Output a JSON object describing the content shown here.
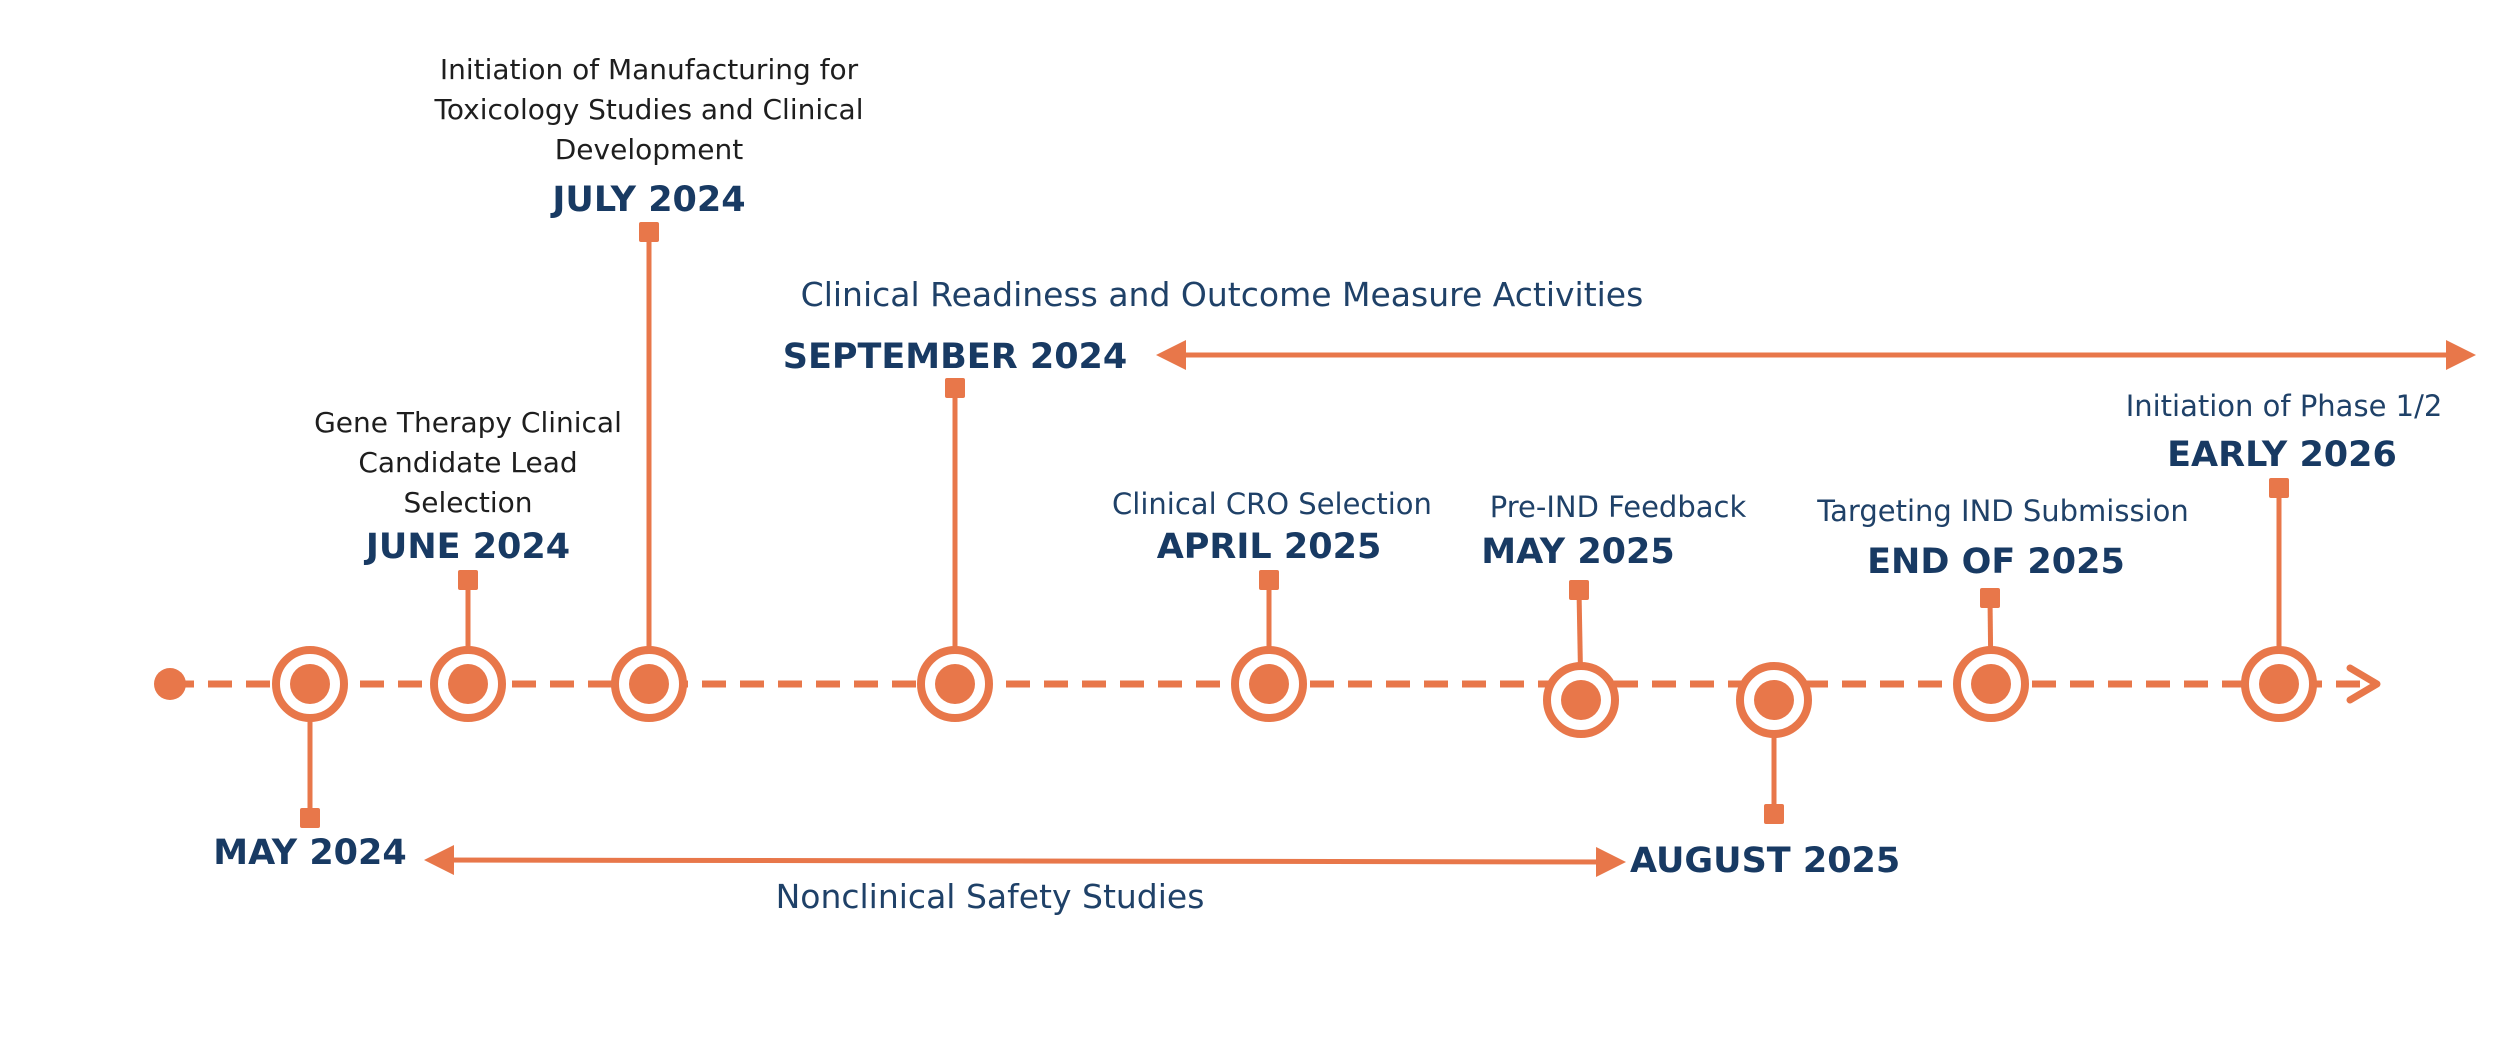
{
  "colors": {
    "accent": "#e8774a",
    "navy": "#183a63",
    "text_dark": "#1e1e1e"
  },
  "milestones": [
    {
      "id": "may-2024",
      "date": "MAY 2024",
      "description": ""
    },
    {
      "id": "june-2024",
      "date": "JUNE 2024",
      "description": "Gene Therapy Clinical Candidate Lead Selection"
    },
    {
      "id": "july-2024",
      "date": "JULY 2024",
      "description": "Initiation of Manufacturing for Toxicology Studies and Clinical Development"
    },
    {
      "id": "september-2024",
      "date": "SEPTEMBER 2024",
      "description": ""
    },
    {
      "id": "april-2025",
      "date": "APRIL 2025",
      "description": "Clinical CRO Selection"
    },
    {
      "id": "may-2025",
      "date": "MAY 2025",
      "description": "Pre-IND Feedback"
    },
    {
      "id": "august-2025",
      "date": "AUGUST 2025",
      "description": ""
    },
    {
      "id": "end-of-2025",
      "date": "END OF 2025",
      "description": "Targeting IND Submission"
    },
    {
      "id": "early-2026",
      "date": "EARLY 2026",
      "description": "Initiation of Phase 1/2"
    }
  ],
  "ranges": [
    {
      "id": "clinical-readiness",
      "label": "Clinical Readiness and Outcome Measure Activities"
    },
    {
      "id": "nonclinical-safety",
      "label": "Nonclinical Safety Studies"
    }
  ]
}
